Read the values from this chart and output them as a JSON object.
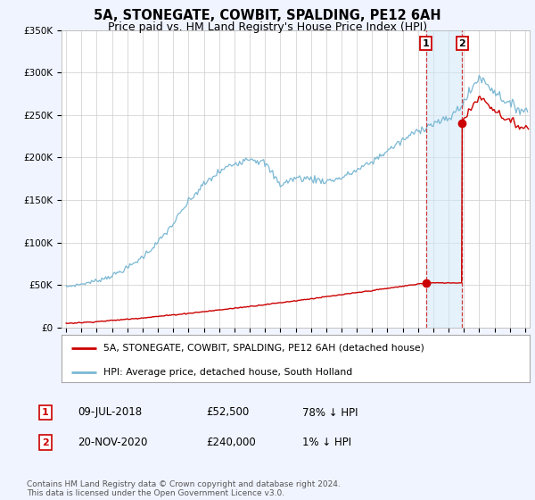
{
  "title": "5A, STONEGATE, COWBIT, SPALDING, PE12 6AH",
  "subtitle": "Price paid vs. HM Land Registry's House Price Index (HPI)",
  "title_fontsize": 10.5,
  "subtitle_fontsize": 9,
  "ylim": [
    0,
    350000
  ],
  "yticks": [
    0,
    50000,
    100000,
    150000,
    200000,
    250000,
    300000,
    350000
  ],
  "ytick_labels": [
    "£0",
    "£50K",
    "£100K",
    "£150K",
    "£200K",
    "£250K",
    "£300K",
    "£350K"
  ],
  "xlim_start": 1994.7,
  "xlim_end": 2025.3,
  "hpi_color": "#7bb8d4",
  "price_color": "#cc0000",
  "event1_x": 2018.52,
  "event1_y": 52500,
  "event2_x": 2020.89,
  "event2_y": 240000,
  "legend_line1": "5A, STONEGATE, COWBIT, SPALDING, PE12 6AH (detached house)",
  "legend_line2": "HPI: Average price, detached house, South Holland",
  "annotation1_date": "09-JUL-2018",
  "annotation1_price": "£52,500",
  "annotation1_hpi": "78% ↓ HPI",
  "annotation2_date": "20-NOV-2020",
  "annotation2_price": "£240,000",
  "annotation2_hpi": "1% ↓ HPI",
  "footer": "Contains HM Land Registry data © Crown copyright and database right 2024.\nThis data is licensed under the Open Government Licence v3.0.",
  "background_color": "#f0f4ff",
  "plot_bg_color": "#ffffff",
  "grid_color": "#cccccc",
  "shade_color": "#d0e8f8"
}
